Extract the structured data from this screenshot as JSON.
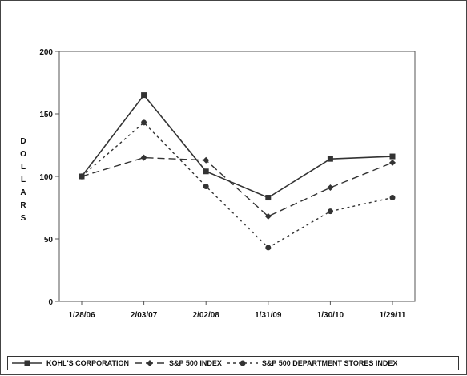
{
  "chart_data": {
    "type": "line",
    "title": "",
    "xlabel": "",
    "ylabel": "DOLLARS",
    "categories": [
      "1/28/06",
      "2/03/07",
      "2/02/08",
      "1/31/09",
      "1/30/10",
      "1/29/11"
    ],
    "ylim": [
      0,
      200
    ],
    "yticks": [
      0,
      50,
      100,
      150,
      200
    ],
    "grid": false,
    "legend_position": "bottom",
    "series": [
      {
        "name": "KOHL'S CORPORATION",
        "values": [
          100,
          165,
          104,
          83,
          114,
          116
        ],
        "marker": "square",
        "line_style": "solid",
        "color": "#333333"
      },
      {
        "name": "S&P 500 INDEX",
        "values": [
          100,
          115,
          113,
          68,
          91,
          111
        ],
        "marker": "diamond",
        "line_style": "long-dash",
        "color": "#333333"
      },
      {
        "name": "S&P 500 DEPARTMENT STORES INDEX",
        "values": [
          100,
          143,
          92,
          43,
          72,
          83
        ],
        "marker": "circle",
        "line_style": "short-dash",
        "color": "#333333"
      }
    ]
  }
}
